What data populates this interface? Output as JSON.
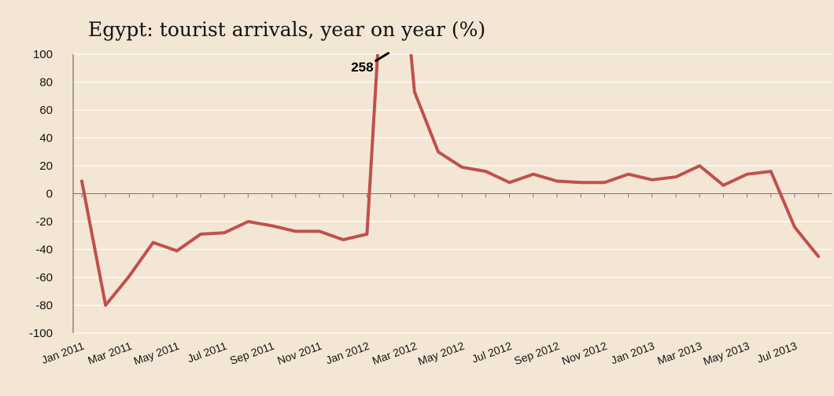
{
  "chart_data": {
    "type": "line",
    "title": "Egypt: tourist arrivals, year on year (%)",
    "xlabel": "",
    "ylabel": "",
    "ylim": [
      -100,
      100
    ],
    "yticks": [
      100,
      80,
      60,
      40,
      20,
      0,
      -20,
      -40,
      -60,
      -80,
      -100
    ],
    "grid": true,
    "x_tick_labels": [
      "Jan 2011",
      "Mar 2011",
      "May 2011",
      "Jul 2011",
      "Sep 2011",
      "Nov 2011",
      "Jan 2012",
      "Mar 2012",
      "May 2012",
      "Jul 2012",
      "Sep 2012",
      "Nov 2012",
      "Jan 2013",
      "Mar 2013",
      "May 2013",
      "Jul 2013"
    ],
    "x": [
      "Jan 2011",
      "Feb 2011",
      "Mar 2011",
      "Apr 2011",
      "May 2011",
      "Jun 2011",
      "Jul 2011",
      "Aug 2011",
      "Sep 2011",
      "Oct 2011",
      "Nov 2011",
      "Dec 2011",
      "Jan 2012",
      "Feb 2012",
      "Mar 2012",
      "Apr 2012",
      "May 2012",
      "Jun 2012",
      "Jul 2012",
      "Aug 2012",
      "Sep 2012",
      "Oct 2012",
      "Nov 2012",
      "Dec 2012",
      "Jan 2013",
      "Feb 2013",
      "Mar 2013",
      "Apr 2013",
      "May 2013",
      "Jun 2013",
      "Jul 2013",
      "Aug 2013"
    ],
    "series": [
      {
        "values": [
          9,
          -80,
          -59,
          -35,
          -41,
          -29,
          -28,
          -20,
          -23,
          -27,
          -27,
          -33,
          -29,
          258,
          73,
          30,
          19,
          16,
          8,
          14,
          9,
          8,
          8,
          14,
          10,
          12,
          20,
          6,
          14,
          16,
          -24,
          -45
        ],
        "color": "#c0504d"
      }
    ],
    "annotations": [
      {
        "text": "258",
        "x": "Feb 2012",
        "value": 258
      }
    ]
  }
}
